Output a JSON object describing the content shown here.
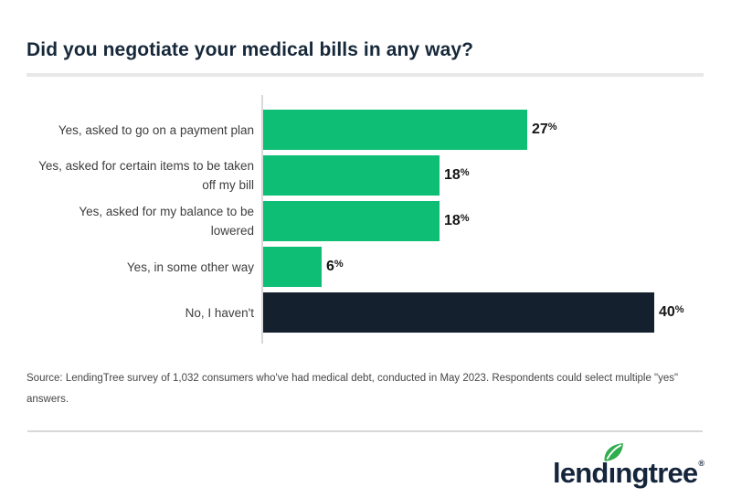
{
  "chart_data": {
    "type": "bar",
    "orientation": "horizontal",
    "title": "Did you negotiate your medical bills in any way?",
    "categories": [
      "Yes, asked to go on a payment plan",
      "Yes, asked for certain items to be taken\noff my bill",
      "Yes, asked for my balance to be\nlowered",
      "Yes, in some other way",
      "No, I haven't"
    ],
    "values": [
      27,
      18,
      18,
      6,
      40
    ],
    "value_labels": [
      "27%",
      "18%",
      "18%",
      "6%",
      "40%"
    ],
    "bar_colors": [
      "#0fbe75",
      "#0fbe75",
      "#0fbe75",
      "#0fbe75",
      "#15202e"
    ],
    "xlabel": "",
    "ylabel": "",
    "xlim": [
      0,
      45
    ],
    "grid": false,
    "legend": false,
    "value_label_position": "end-of-bar"
  },
  "source": {
    "lines": [
      "Source: LendingTree survey of 1,032 consumers who've had medical debt, conducted in May 2023. Respondents could select multiple \"yes\"",
      "answers."
    ]
  },
  "logo": {
    "part1": "lend",
    "dotless_i": "ı",
    "part2": "ngtree",
    "registered": "®",
    "leaf_color": "#2fae4e",
    "text_color": "#15253c"
  },
  "colors": {
    "accent_green": "#0fbe75",
    "dark_navy": "#15202e",
    "title_navy": "#16283a",
    "divider": "#e8e8e8",
    "axis_line": "#d9d9d9"
  }
}
